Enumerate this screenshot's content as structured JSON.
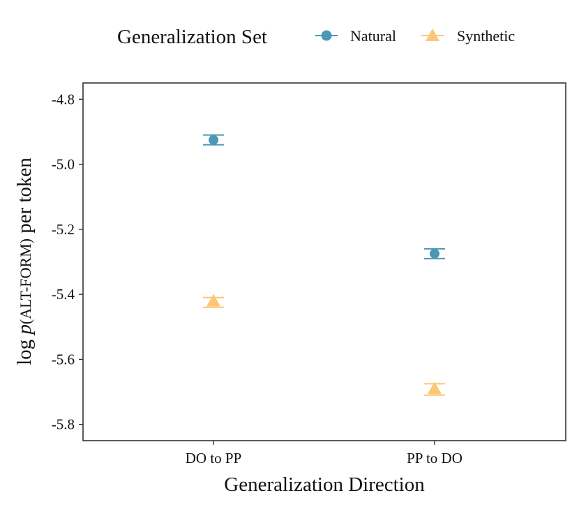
{
  "legend": {
    "title": "Generalization Set",
    "position": "top",
    "entries": [
      {
        "label": "Natural",
        "color": "#4a98b5",
        "shape": "circle"
      },
      {
        "label": "Synthetic",
        "color": "#fdc676",
        "shape": "triangle"
      }
    ]
  },
  "chart_data": {
    "type": "scatter",
    "xlabel": "Generalization Direction",
    "ylabel_parts": [
      "log ",
      "p",
      "(ALT-FORM)",
      " per token"
    ],
    "categories": [
      "DO to PP",
      "PP to DO"
    ],
    "ylim": [
      -5.85,
      -4.75
    ],
    "yticks": [
      -5.8,
      -5.6,
      -5.4,
      -5.2,
      -5.0,
      -4.8
    ],
    "ytick_labels": [
      "-5.8",
      "-5.6",
      "-5.4",
      "-5.2",
      "-5.0",
      "-4.8"
    ],
    "grid": false,
    "series": [
      {
        "name": "Natural",
        "color": "#4a98b5",
        "shape": "circle",
        "values": [
          -4.925,
          -5.275
        ],
        "error_low": [
          -4.94,
          -5.29
        ],
        "error_high": [
          -4.91,
          -5.26
        ]
      },
      {
        "name": "Synthetic",
        "color": "#fdc676",
        "shape": "triangle",
        "values": [
          -5.42,
          -5.69
        ],
        "error_low": [
          -5.44,
          -5.71
        ],
        "error_high": [
          -5.41,
          -5.675
        ]
      }
    ]
  }
}
